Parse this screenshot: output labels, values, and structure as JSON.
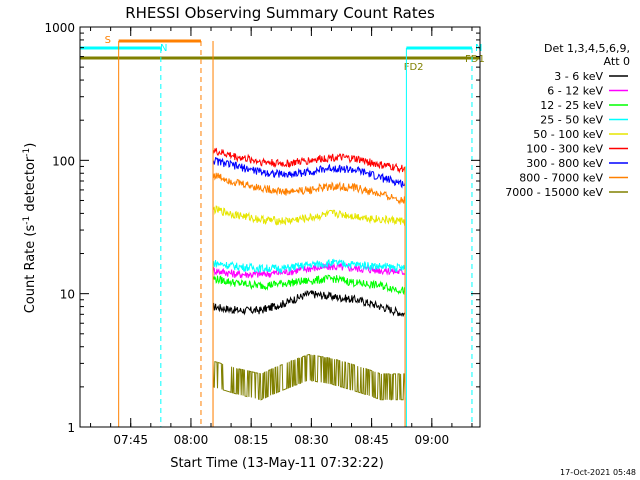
{
  "chart_data": {
    "type": "line",
    "title": "RHESSI Observing Summary Count Rates",
    "xlabel": "Start Time (13-May-11 07:32:22)",
    "ylabel_main": "Count Rate (s",
    "ylabel_sup1": "-1",
    "ylabel_mid": " detector",
    "ylabel_sup2": "-1",
    "ylabel_end": ")",
    "yscale": "log",
    "ylim": [
      1,
      1000
    ],
    "y_ticks": [
      {
        "value": 1,
        "label": "1"
      },
      {
        "value": 10,
        "label": "10"
      },
      {
        "value": 100,
        "label": "100"
      },
      {
        "value": 1000,
        "label": "1000"
      }
    ],
    "xlim": [
      "07:32:22",
      "09:12:00"
    ],
    "x_ticks": [
      {
        "value": "07:45",
        "label": "07:45"
      },
      {
        "value": "08:00",
        "label": "08:00"
      },
      {
        "value": "08:15",
        "label": "08:15"
      },
      {
        "value": "08:30",
        "label": "08:30"
      },
      {
        "value": "08:45",
        "label": "08:45"
      },
      {
        "value": "09:00",
        "label": "09:00"
      }
    ],
    "legend_header": [
      "Det 1,3,4,5,6,9,",
      "Att 0"
    ],
    "legend_position": "right",
    "data_start": "08:05:30",
    "data_end": "08:53:20",
    "series": [
      {
        "name": "3 - 6 keV",
        "color": "#000000",
        "values": [
          8,
          7.5,
          7.5,
          8.5,
          10,
          9.5,
          9,
          8,
          7
        ]
      },
      {
        "name": "6 - 12 keV",
        "color": "#ff00ff",
        "values": [
          15,
          14,
          14,
          14.5,
          15.5,
          16,
          15.5,
          15,
          14.5
        ]
      },
      {
        "name": "12 - 25 keV",
        "color": "#00ff00",
        "values": [
          13,
          12,
          11.5,
          12,
          12.5,
          13,
          12,
          11.5,
          10.5
        ]
      },
      {
        "name": "25 - 50 keV",
        "color": "#00ffff",
        "values": [
          17,
          16,
          15.5,
          15.5,
          16.5,
          17,
          16.5,
          16,
          15.5
        ]
      },
      {
        "name": "50 - 100 keV",
        "color": "#e6e600",
        "values": [
          43,
          39,
          36,
          35,
          37,
          40,
          38,
          36,
          35
        ]
      },
      {
        "name": "100 - 300 keV",
        "color": "#ff0000",
        "values": [
          118,
          106,
          98,
          94,
          100,
          106,
          102,
          92,
          86
        ]
      },
      {
        "name": "300 - 800 keV",
        "color": "#0000ff",
        "values": [
          100,
          90,
          82,
          78,
          82,
          88,
          84,
          74,
          66
        ]
      },
      {
        "name": "800 - 7000 keV",
        "color": "#ff8000",
        "values": [
          78,
          68,
          62,
          58,
          60,
          64,
          62,
          55,
          50
        ]
      },
      {
        "name": "7000 - 15000 keV",
        "color": "#808000",
        "values": [
          2.5,
          2.2,
          2.0,
          2.4,
          2.8,
          2.6,
          2.3,
          2.0,
          2.0
        ]
      }
    ],
    "flags": [
      {
        "label": "S",
        "color": "#ff8000",
        "start": "07:42:00",
        "end": "08:02:30",
        "value": 760
      },
      {
        "label": "N",
        "color": "#00ffff",
        "start": "07:32:22",
        "end": "07:52:30",
        "value": 680
      },
      {
        "label": "N",
        "color": "#00ffff",
        "start": "08:53:40",
        "end": "09:10:00",
        "value": 680
      },
      {
        "label": "FD1",
        "color": "#808000",
        "start": "07:32:22",
        "end": "09:12:00",
        "value": 570
      },
      {
        "label": "FD2",
        "color": "#808000",
        "start": "08:47:00",
        "end": "09:00:00",
        "value": 570
      }
    ],
    "vertical_markers": [
      {
        "time": "07:42:00",
        "color": "#ff8000",
        "style": "solid"
      },
      {
        "time": "07:52:30",
        "color": "#00ffff",
        "style": "dashed"
      },
      {
        "time": "08:02:30",
        "color": "#ff8000",
        "style": "dashed"
      },
      {
        "time": "08:05:30",
        "color": "#ff8000",
        "style": "solid"
      },
      {
        "time": "08:53:40",
        "color": "#00ffff",
        "style": "solid"
      },
      {
        "time": "09:10:00",
        "color": "#00ffff",
        "style": "dashed"
      }
    ],
    "footer": "17-Oct-2021 05:48",
    "grid": false
  }
}
